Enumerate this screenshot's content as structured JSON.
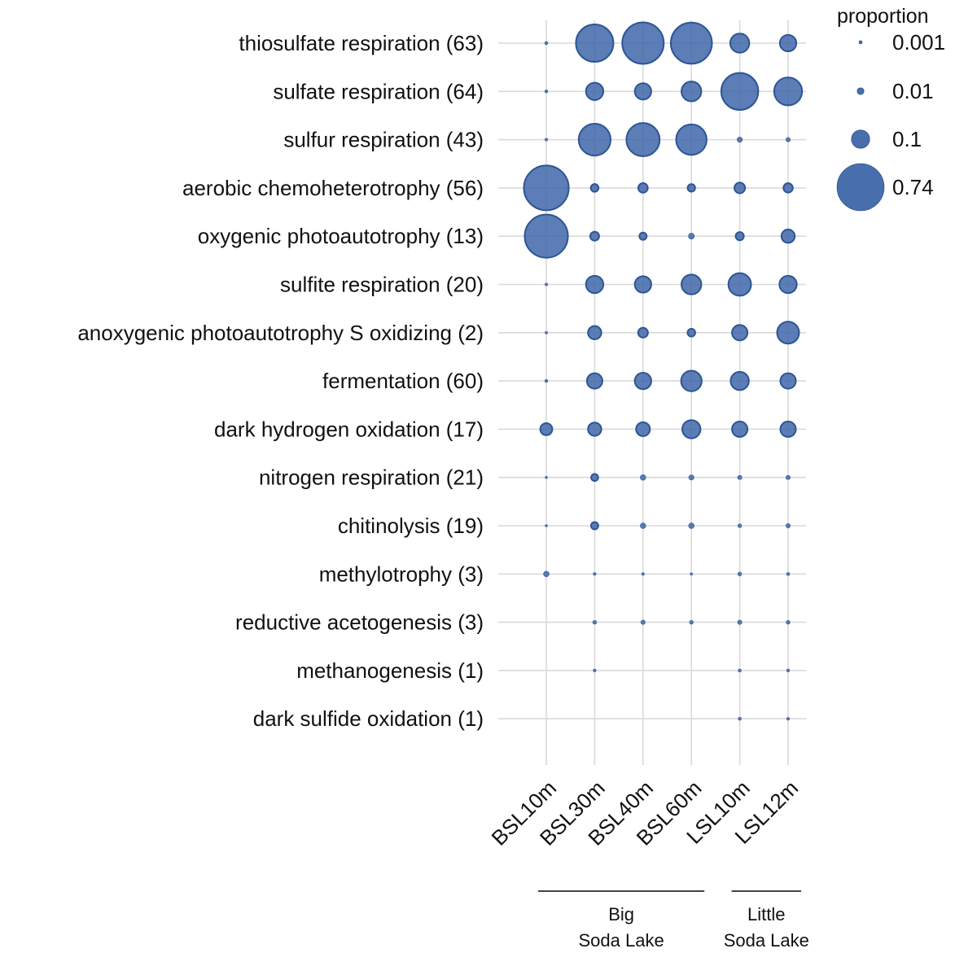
{
  "chart_data": {
    "type": "scatter",
    "title": "",
    "xlabel": "",
    "ylabel": "",
    "legend_position": "top-right",
    "grid": true,
    "marker_color": "#3f66a8",
    "marker_edge_color": "#2d5596",
    "gridline_color": "#d9d9d9",
    "legend": {
      "title": "proportion",
      "entries": [
        {
          "label": "0.001",
          "value": 0.001
        },
        {
          "label": "0.01",
          "value": 0.01
        },
        {
          "label": "0.1",
          "value": 0.1
        },
        {
          "label": "0.74",
          "value": 0.74
        }
      ]
    },
    "samples": [
      "BSL10m",
      "BSL30m",
      "BSL40m",
      "BSL60m",
      "LSL10m",
      "LSL12m"
    ],
    "groups": [
      {
        "line1": "Big",
        "line2": "Soda Lake",
        "samples": [
          "BSL10m",
          "BSL30m",
          "BSL40m",
          "BSL60m"
        ]
      },
      {
        "line1": "Little",
        "line2": "Soda Lake",
        "samples": [
          "LSL10m",
          "LSL12m"
        ]
      }
    ],
    "functions": [
      "thiosulfate respiration (63)",
      "sulfate respiration (64)",
      "sulfur respiration (43)",
      "aerobic chemoheterotrophy (56)",
      "oxygenic photoautotrophy (13)",
      "sulfite respiration (20)",
      "anoxygenic photoautotrophy S oxidizing (2)",
      "fermentation (60)",
      "dark hydrogen oxidation (17)",
      "nitrogen respiration (21)",
      "chitinolysis (19)",
      "methylotrophy (3)",
      "reductive acetogenesis (3)",
      "methanogenesis (1)",
      "dark sulfide oxidation (1)"
    ],
    "proportions": [
      [
        0.001,
        0.46,
        0.57,
        0.56,
        0.11,
        0.08
      ],
      [
        0.0008,
        0.09,
        0.08,
        0.12,
        0.45,
        0.25
      ],
      [
        0.0005,
        0.33,
        0.36,
        0.3,
        0.005,
        0.003
      ],
      [
        0.67,
        0.014,
        0.023,
        0.013,
        0.03,
        0.022
      ],
      [
        0.62,
        0.02,
        0.012,
        0.007,
        0.016,
        0.05
      ],
      [
        0.0005,
        0.09,
        0.08,
        0.12,
        0.16,
        0.09
      ],
      [
        0.0004,
        0.05,
        0.025,
        0.014,
        0.07,
        0.15
      ],
      [
        0.0007,
        0.07,
        0.08,
        0.13,
        0.1,
        0.07
      ],
      [
        0.04,
        0.05,
        0.055,
        0.1,
        0.07,
        0.07
      ],
      [
        0.0002,
        0.011,
        0.006,
        0.005,
        0.003,
        0.003
      ],
      [
        0.0002,
        0.012,
        0.006,
        0.006,
        0.002,
        0.003
      ],
      [
        0.006,
        0.0006,
        0.0005,
        0.0003,
        0.002,
        0.001
      ],
      [
        0.0,
        0.002,
        0.003,
        0.002,
        0.003,
        0.002
      ],
      [
        0.0,
        0.0007,
        0.0,
        0.0,
        0.001,
        0.0008
      ],
      [
        0.0,
        0.0,
        0.0,
        0.0,
        0.001,
        0.0006
      ]
    ]
  }
}
